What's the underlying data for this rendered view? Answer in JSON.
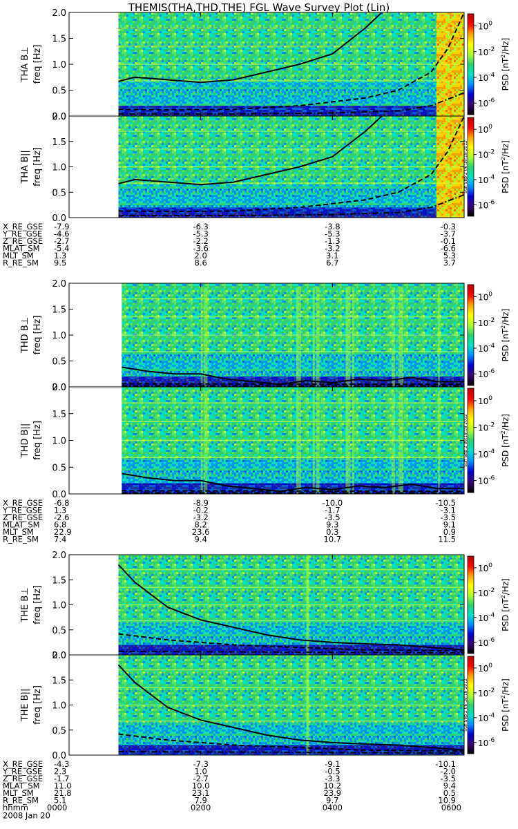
{
  "title": "THEMIS(THA,THD,THE) FGL Wave Survey Plot (Lin)",
  "time_axis": {
    "label_row": "hhmm",
    "date_label": "2008 Jan 20",
    "ticks": [
      "0000",
      "0200",
      "0400",
      "0600"
    ]
  },
  "colorbar": {
    "label_prefix": "PSD [nT",
    "label_sup": "2",
    "label_suffix": "/Hz]",
    "tick_base": "10",
    "tick_exponents": [
      "0",
      "-2",
      "-4",
      "-6"
    ],
    "stamp": "Sun Sep  2 06:18:18 2012",
    "colors": [
      "#000000",
      "#3a0070",
      "#0000cc",
      "#0090ff",
      "#00e0c0",
      "#30d070",
      "#b0ff30",
      "#ffff00",
      "#ffa000",
      "#ff0000",
      "#b00000"
    ]
  },
  "panel_groups": [
    {
      "id": "tha",
      "panels": [
        {
          "ylabel": "THA B⊥",
          "unit": "freq [Hz]"
        },
        {
          "ylabel": "THA B||",
          "unit": "freq [Hz]"
        }
      ],
      "ephemeris": [
        {
          "label": "X_RE_GSE",
          "values": [
            "-7.9",
            "-6.3",
            "-3.8",
            "-0.3"
          ]
        },
        {
          "label": "Y_RE_GSE",
          "values": [
            "-4.6",
            "-5.3",
            "-5.3",
            "-3.7"
          ]
        },
        {
          "label": "Z_RE_GSE",
          "values": [
            "-2.7",
            "-2.2",
            "-1.3",
            "-0.1"
          ]
        },
        {
          "label": "MLAT_SM",
          "values": [
            "-5.4",
            "-3.6",
            "-3.2",
            "-6.6"
          ]
        },
        {
          "label": "MLT_SM",
          "values": [
            "1.3",
            "2.0",
            "3.1",
            "5.3"
          ]
        },
        {
          "label": "R_RE_SM",
          "values": [
            "9.5",
            "8.6",
            "6.7",
            "3.7"
          ]
        }
      ]
    },
    {
      "id": "thd",
      "panels": [
        {
          "ylabel": "THD B⊥",
          "unit": "freq [Hz]"
        },
        {
          "ylabel": "THD B||",
          "unit": "freq [Hz]"
        }
      ],
      "ephemeris": [
        {
          "label": "X_RE_GSE",
          "values": [
            "-6.8",
            "-8.9",
            "-10.0",
            "-10.5"
          ]
        },
        {
          "label": "Y_RE_GSE",
          "values": [
            "1.3",
            "-0.2",
            "-1.7",
            "-3.1"
          ]
        },
        {
          "label": "Z_RE_GSE",
          "values": [
            "-2.6",
            "-3.2",
            "-3.5",
            "-3.5"
          ]
        },
        {
          "label": "MLAT_SM",
          "values": [
            "6.8",
            "8.2",
            "9.3",
            "9.1"
          ]
        },
        {
          "label": "MLT_SM",
          "values": [
            "22.9",
            "23.6",
            "0.3",
            "0.9"
          ]
        },
        {
          "label": "R_RE_SM",
          "values": [
            "7.4",
            "9.4",
            "10.7",
            "11.5"
          ]
        }
      ]
    },
    {
      "id": "the",
      "panels": [
        {
          "ylabel": "THE B⊥",
          "unit": "freq [Hz]"
        },
        {
          "ylabel": "THE B||",
          "unit": "freq [Hz]"
        }
      ],
      "ephemeris": [
        {
          "label": "X_RE_GSE",
          "values": [
            "-4.3",
            "-7.3",
            "-9.1",
            "-10.1"
          ]
        },
        {
          "label": "Y_RE_GSE",
          "values": [
            "2.3",
            "1.0",
            "-0.5",
            "-2.0"
          ]
        },
        {
          "label": "Z_RE_GSE",
          "values": [
            "-1.7",
            "-2.7",
            "-3.3",
            "-3.5"
          ]
        },
        {
          "label": "MLAT_SM",
          "values": [
            "11.0",
            "10.0",
            "10.2",
            "9.4"
          ]
        },
        {
          "label": "MLT_SM",
          "values": [
            "21.8",
            "23.1",
            "23.9",
            "0.5"
          ]
        },
        {
          "label": "R_RE_SM",
          "values": [
            "5.1",
            "7.9",
            "9.7",
            "10.9"
          ]
        }
      ]
    }
  ],
  "chart_data": {
    "type": "heatmap",
    "title": "THEMIS(THA,THD,THE) FGL Wave Survey Plot (Lin)",
    "x_ticks": [
      "0000",
      "0200",
      "0400",
      "0600"
    ],
    "xlim_hours": [
      0,
      6
    ],
    "ylim": [
      0,
      2.0
    ],
    "y_ticks": [
      0.0,
      0.5,
      1.0,
      1.5,
      2.0
    ],
    "color_scale": "log",
    "color_ticks": [
      "10^0",
      "10^-2",
      "10^-4",
      "10^-6"
    ],
    "panels": [
      {
        "name": "THA B⊥",
        "data_start_hours": 0.75,
        "bright_band_start_hours": 5.58,
        "curves": {
          "solid_hours": [
            0.75,
            1.0,
            1.5,
            2.0,
            2.5,
            3.0,
            3.5,
            4.0,
            4.5,
            4.75
          ],
          "solid_values": [
            0.67,
            0.75,
            0.7,
            0.65,
            0.7,
            0.85,
            1.0,
            1.2,
            1.7,
            2.0
          ],
          "dashed_hours": [
            0.75,
            1.5,
            2.5,
            3.5,
            4.5,
            5.0,
            5.5,
            5.75,
            6.0
          ],
          "dashed_values": [
            0.13,
            0.12,
            0.13,
            0.2,
            0.35,
            0.5,
            0.85,
            1.3,
            2.0
          ],
          "dotdash_hours": [
            0.75,
            2.5,
            4.0,
            5.0,
            5.5,
            6.0
          ],
          "dotdash_values": [
            0.04,
            0.04,
            0.06,
            0.1,
            0.2,
            0.45
          ]
        }
      },
      {
        "name": "THA B||",
        "data_start_hours": 0.75,
        "bright_band_start_hours": 5.58,
        "curves": {
          "solid_hours": [
            0.75,
            1.0,
            1.5,
            2.0,
            2.5,
            3.0,
            3.5,
            4.0,
            4.5,
            4.75
          ],
          "solid_values": [
            0.67,
            0.75,
            0.7,
            0.65,
            0.7,
            0.85,
            1.0,
            1.2,
            1.7,
            2.0
          ],
          "dashed_hours": [
            0.75,
            1.5,
            2.5,
            3.5,
            4.5,
            5.0,
            5.5,
            5.75,
            6.0
          ],
          "dashed_values": [
            0.13,
            0.12,
            0.13,
            0.2,
            0.35,
            0.5,
            0.85,
            1.3,
            2.0
          ],
          "dotdash_hours": [
            0.75,
            2.5,
            4.0,
            5.0,
            5.5,
            6.0
          ],
          "dotdash_values": [
            0.04,
            0.04,
            0.06,
            0.1,
            0.2,
            0.45
          ]
        }
      },
      {
        "name": "THD B⊥",
        "data_start_hours": 0.8,
        "curves": {
          "solid_hours": [
            0.8,
            1.2,
            1.6,
            2.0,
            2.4,
            2.8,
            3.2,
            3.6,
            4.0,
            4.4,
            4.8,
            5.2,
            5.6,
            6.0
          ],
          "solid_values": [
            0.38,
            0.3,
            0.25,
            0.25,
            0.15,
            0.1,
            0.05,
            0.12,
            0.08,
            0.15,
            0.12,
            0.18,
            0.1,
            0.1
          ],
          "dashed_hours": [
            0.8,
            6.0
          ],
          "dashed_values": [
            0.06,
            0.05
          ],
          "dotdash_hours": [
            0.8,
            6.0
          ],
          "dotdash_values": [
            0.02,
            0.02
          ]
        }
      },
      {
        "name": "THD B||",
        "data_start_hours": 0.8,
        "curves": {
          "solid_hours": [
            0.8,
            1.2,
            1.6,
            2.0,
            2.4,
            2.8,
            3.2,
            3.6,
            4.0,
            4.4,
            4.8,
            5.2,
            5.6,
            6.0
          ],
          "solid_values": [
            0.38,
            0.3,
            0.25,
            0.25,
            0.15,
            0.1,
            0.05,
            0.12,
            0.08,
            0.15,
            0.12,
            0.18,
            0.1,
            0.1
          ],
          "dashed_hours": [
            0.8,
            6.0
          ],
          "dashed_values": [
            0.06,
            0.05
          ],
          "dotdash_hours": [
            0.8,
            6.0
          ],
          "dotdash_values": [
            0.02,
            0.02
          ]
        }
      },
      {
        "name": "THE B⊥",
        "data_start_hours": 0.75,
        "curves": {
          "solid_hours": [
            0.75,
            1.0,
            1.5,
            2.0,
            2.5,
            3.0,
            3.5,
            4.0,
            4.5,
            5.0,
            5.5,
            6.0
          ],
          "solid_values": [
            1.8,
            1.45,
            0.95,
            0.7,
            0.55,
            0.4,
            0.3,
            0.25,
            0.22,
            0.2,
            0.15,
            0.1
          ],
          "dashed_hours": [
            0.75,
            1.5,
            2.5,
            3.5,
            4.5,
            6.0
          ],
          "dashed_values": [
            0.42,
            0.3,
            0.2,
            0.15,
            0.1,
            0.08
          ],
          "dotdash_hours": [
            0.75,
            6.0
          ],
          "dotdash_values": [
            0.07,
            0.04
          ]
        }
      },
      {
        "name": "THE B||",
        "data_start_hours": 0.75,
        "curves": {
          "solid_hours": [
            0.75,
            1.0,
            1.5,
            2.0,
            2.5,
            3.0,
            3.5,
            4.0,
            4.5,
            5.0,
            5.5,
            6.0
          ],
          "solid_values": [
            1.8,
            1.45,
            0.95,
            0.7,
            0.55,
            0.4,
            0.3,
            0.25,
            0.22,
            0.2,
            0.15,
            0.1
          ],
          "dashed_hours": [
            0.75,
            1.5,
            2.5,
            3.5,
            4.5,
            6.0
          ],
          "dashed_values": [
            0.42,
            0.3,
            0.2,
            0.15,
            0.1,
            0.08
          ],
          "dotdash_hours": [
            0.75,
            6.0
          ],
          "dotdash_values": [
            0.07,
            0.04
          ]
        }
      }
    ]
  }
}
